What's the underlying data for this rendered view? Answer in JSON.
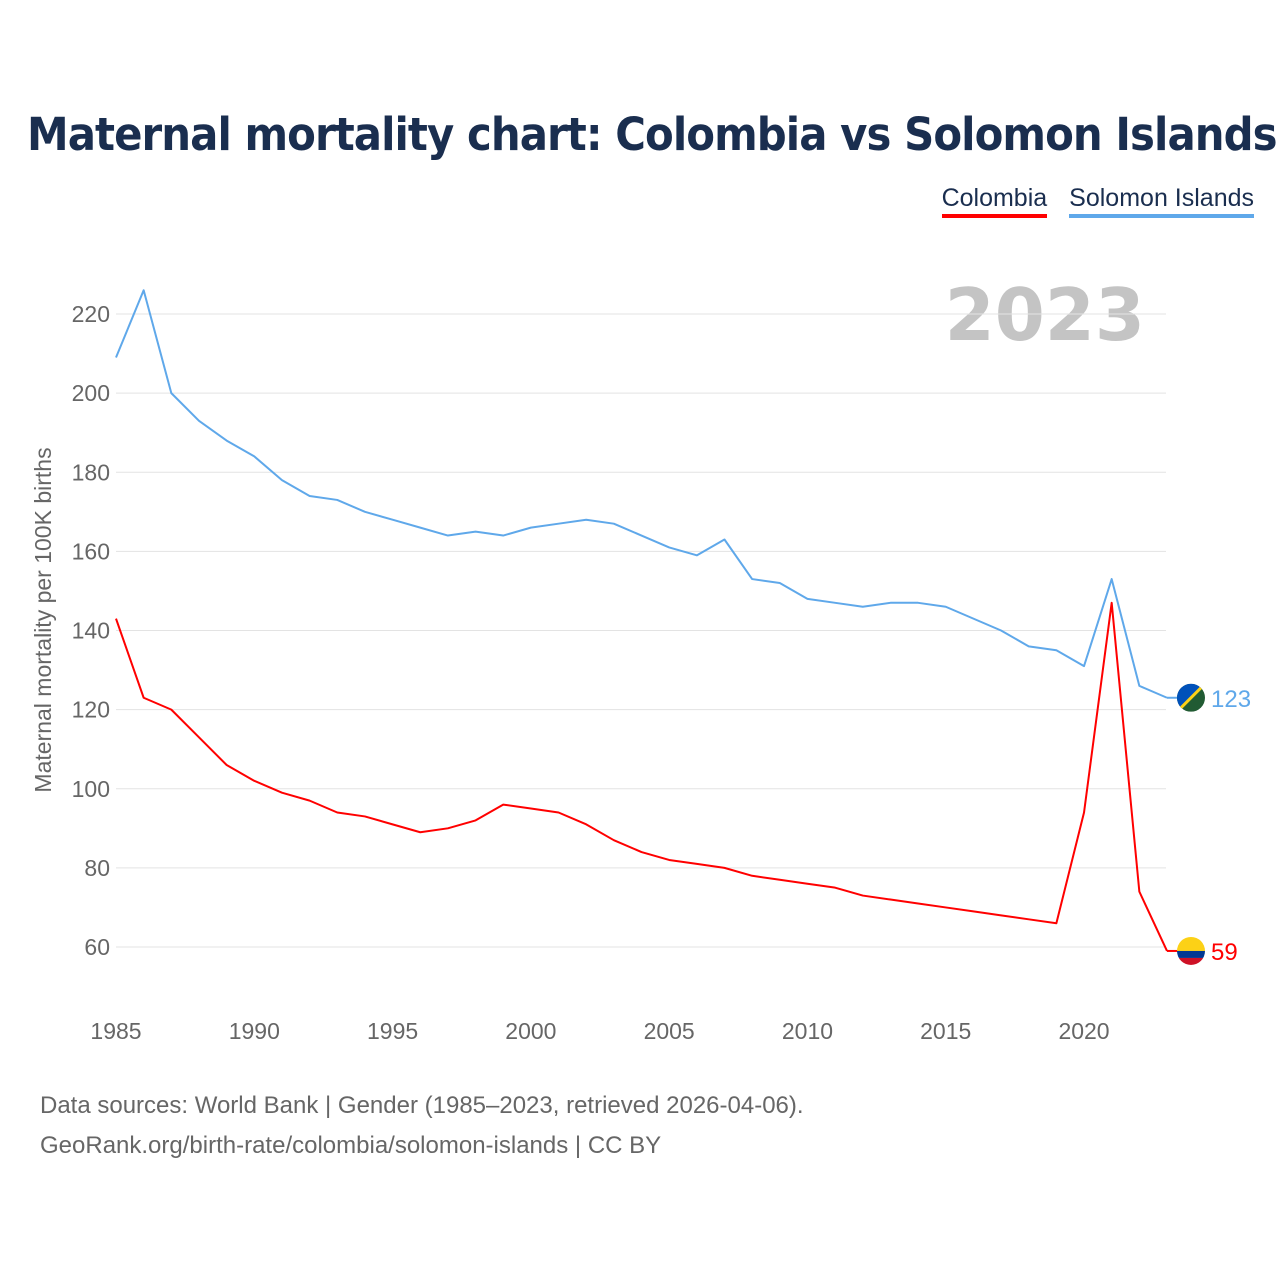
{
  "chart_data": {
    "type": "line",
    "title": "Maternal mortality chart: Colombia vs Solomon Islands",
    "ylabel": "Maternal mortality per 100K births",
    "xlabel": "",
    "year_label": "2023",
    "ylim": [
      50,
      235
    ],
    "xlim": [
      1985,
      2023
    ],
    "yticks": [
      60,
      80,
      100,
      120,
      140,
      160,
      180,
      200,
      220
    ],
    "xticks": [
      1985,
      1990,
      1995,
      2000,
      2005,
      2010,
      2015,
      2020
    ],
    "grid": true,
    "legend_position": "top-right",
    "x": [
      1985,
      1986,
      1987,
      1988,
      1989,
      1990,
      1991,
      1992,
      1993,
      1994,
      1995,
      1996,
      1997,
      1998,
      1999,
      2000,
      2001,
      2002,
      2003,
      2004,
      2005,
      2006,
      2007,
      2008,
      2009,
      2010,
      2011,
      2012,
      2013,
      2014,
      2015,
      2016,
      2017,
      2018,
      2019,
      2020,
      2021,
      2022,
      2023
    ],
    "series": [
      {
        "name": "Colombia",
        "color": "#ff0000",
        "end_label": "59",
        "values": [
          143,
          123,
          120,
          113,
          106,
          102,
          99,
          97,
          94,
          93,
          91,
          89,
          90,
          92,
          96,
          95,
          94,
          91,
          87,
          84,
          82,
          81,
          80,
          78,
          77,
          76,
          75,
          73,
          72,
          71,
          70,
          69,
          68,
          67,
          66,
          94,
          147,
          74,
          59
        ]
      },
      {
        "name": "Solomon Islands",
        "color": "#5fa8ea",
        "end_label": "123",
        "values": [
          209,
          226,
          200,
          193,
          188,
          184,
          178,
          174,
          173,
          170,
          168,
          166,
          164,
          165,
          164,
          166,
          167,
          168,
          167,
          164,
          161,
          159,
          163,
          153,
          152,
          148,
          147,
          146,
          147,
          147,
          146,
          143,
          140,
          136,
          135,
          131,
          153,
          126,
          123
        ]
      }
    ]
  },
  "footer": {
    "line1": "Data sources: World Bank | Gender (1985–2023, retrieved 2026-04-06).",
    "line2": "GeoRank.org/birth-rate/colombia/solomon-islands | CC BY"
  }
}
